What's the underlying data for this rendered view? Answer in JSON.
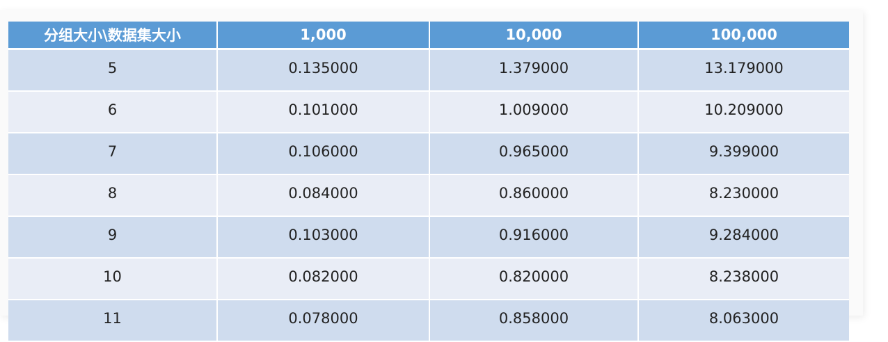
{
  "table": {
    "headers": [
      "分组大小\\数据集大小",
      "1,000",
      "10,000",
      "100,000"
    ],
    "rows": [
      [
        "5",
        "0.135000",
        "1.379000",
        "13.179000"
      ],
      [
        "6",
        "0.101000",
        "1.009000",
        "10.209000"
      ],
      [
        "7",
        "0.106000",
        "0.965000",
        "9.399000"
      ],
      [
        "8",
        "0.084000",
        "0.860000",
        "8.230000"
      ],
      [
        "9",
        "0.103000",
        "0.916000",
        "9.284000"
      ],
      [
        "10",
        "0.082000",
        "0.820000",
        "8.238000"
      ],
      [
        "11",
        "0.078000",
        "0.858000",
        "8.063000"
      ]
    ]
  },
  "colors": {
    "header_bg": "#5b9bd5",
    "row_odd_bg": "#cfdcee",
    "row_even_bg": "#e9edf6"
  }
}
